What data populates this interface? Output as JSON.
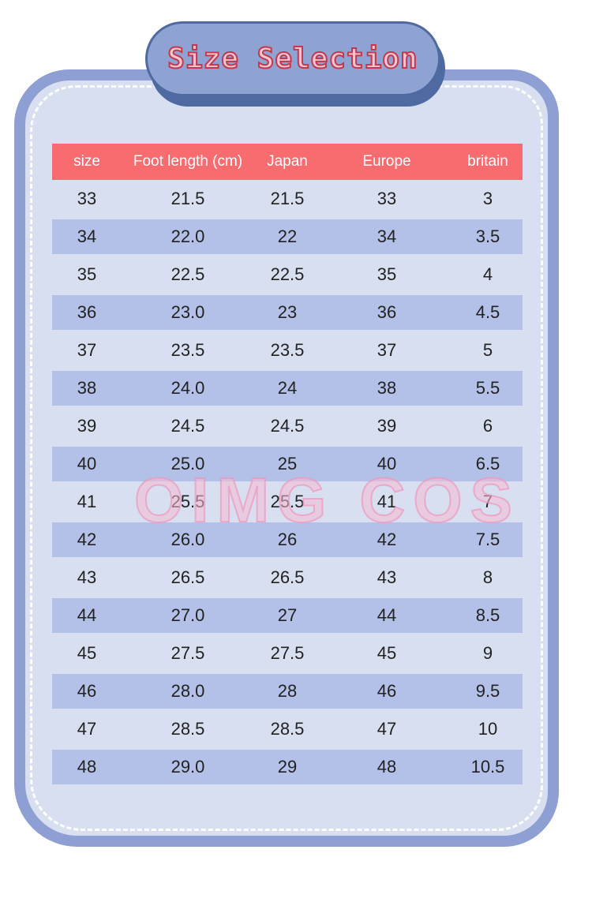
{
  "title": "Size Selection",
  "watermark": "OIMG COS",
  "headers": [
    "size",
    "Foot length (cm)",
    "Japan",
    "Europe",
    "britain"
  ],
  "rows": [
    [
      "33",
      "21.5",
      "21.5",
      "33",
      "3"
    ],
    [
      "34",
      "22.0",
      "22",
      "34",
      "3.5"
    ],
    [
      "35",
      "22.5",
      "22.5",
      "35",
      "4"
    ],
    [
      "36",
      "23.0",
      "23",
      "36",
      "4.5"
    ],
    [
      "37",
      "23.5",
      "23.5",
      "37",
      "5"
    ],
    [
      "38",
      "24.0",
      "24",
      "38",
      "5.5"
    ],
    [
      "39",
      "24.5",
      "24.5",
      "39",
      "6"
    ],
    [
      "40",
      "25.0",
      "25",
      "40",
      "6.5"
    ],
    [
      "41",
      "25.5",
      "25.5",
      "41",
      "7"
    ],
    [
      "42",
      "26.0",
      "26",
      "42",
      "7.5"
    ],
    [
      "43",
      "26.5",
      "26.5",
      "43",
      "8"
    ],
    [
      "44",
      "27.0",
      "27",
      "44",
      "8.5"
    ],
    [
      "45",
      "27.5",
      "27.5",
      "45",
      "9"
    ],
    [
      "46",
      "28.0",
      "28",
      "46",
      "9.5"
    ],
    [
      "47",
      "28.5",
      "28.5",
      "47",
      "10"
    ],
    [
      "48",
      "29.0",
      "29",
      "48",
      "10.5"
    ]
  ]
}
